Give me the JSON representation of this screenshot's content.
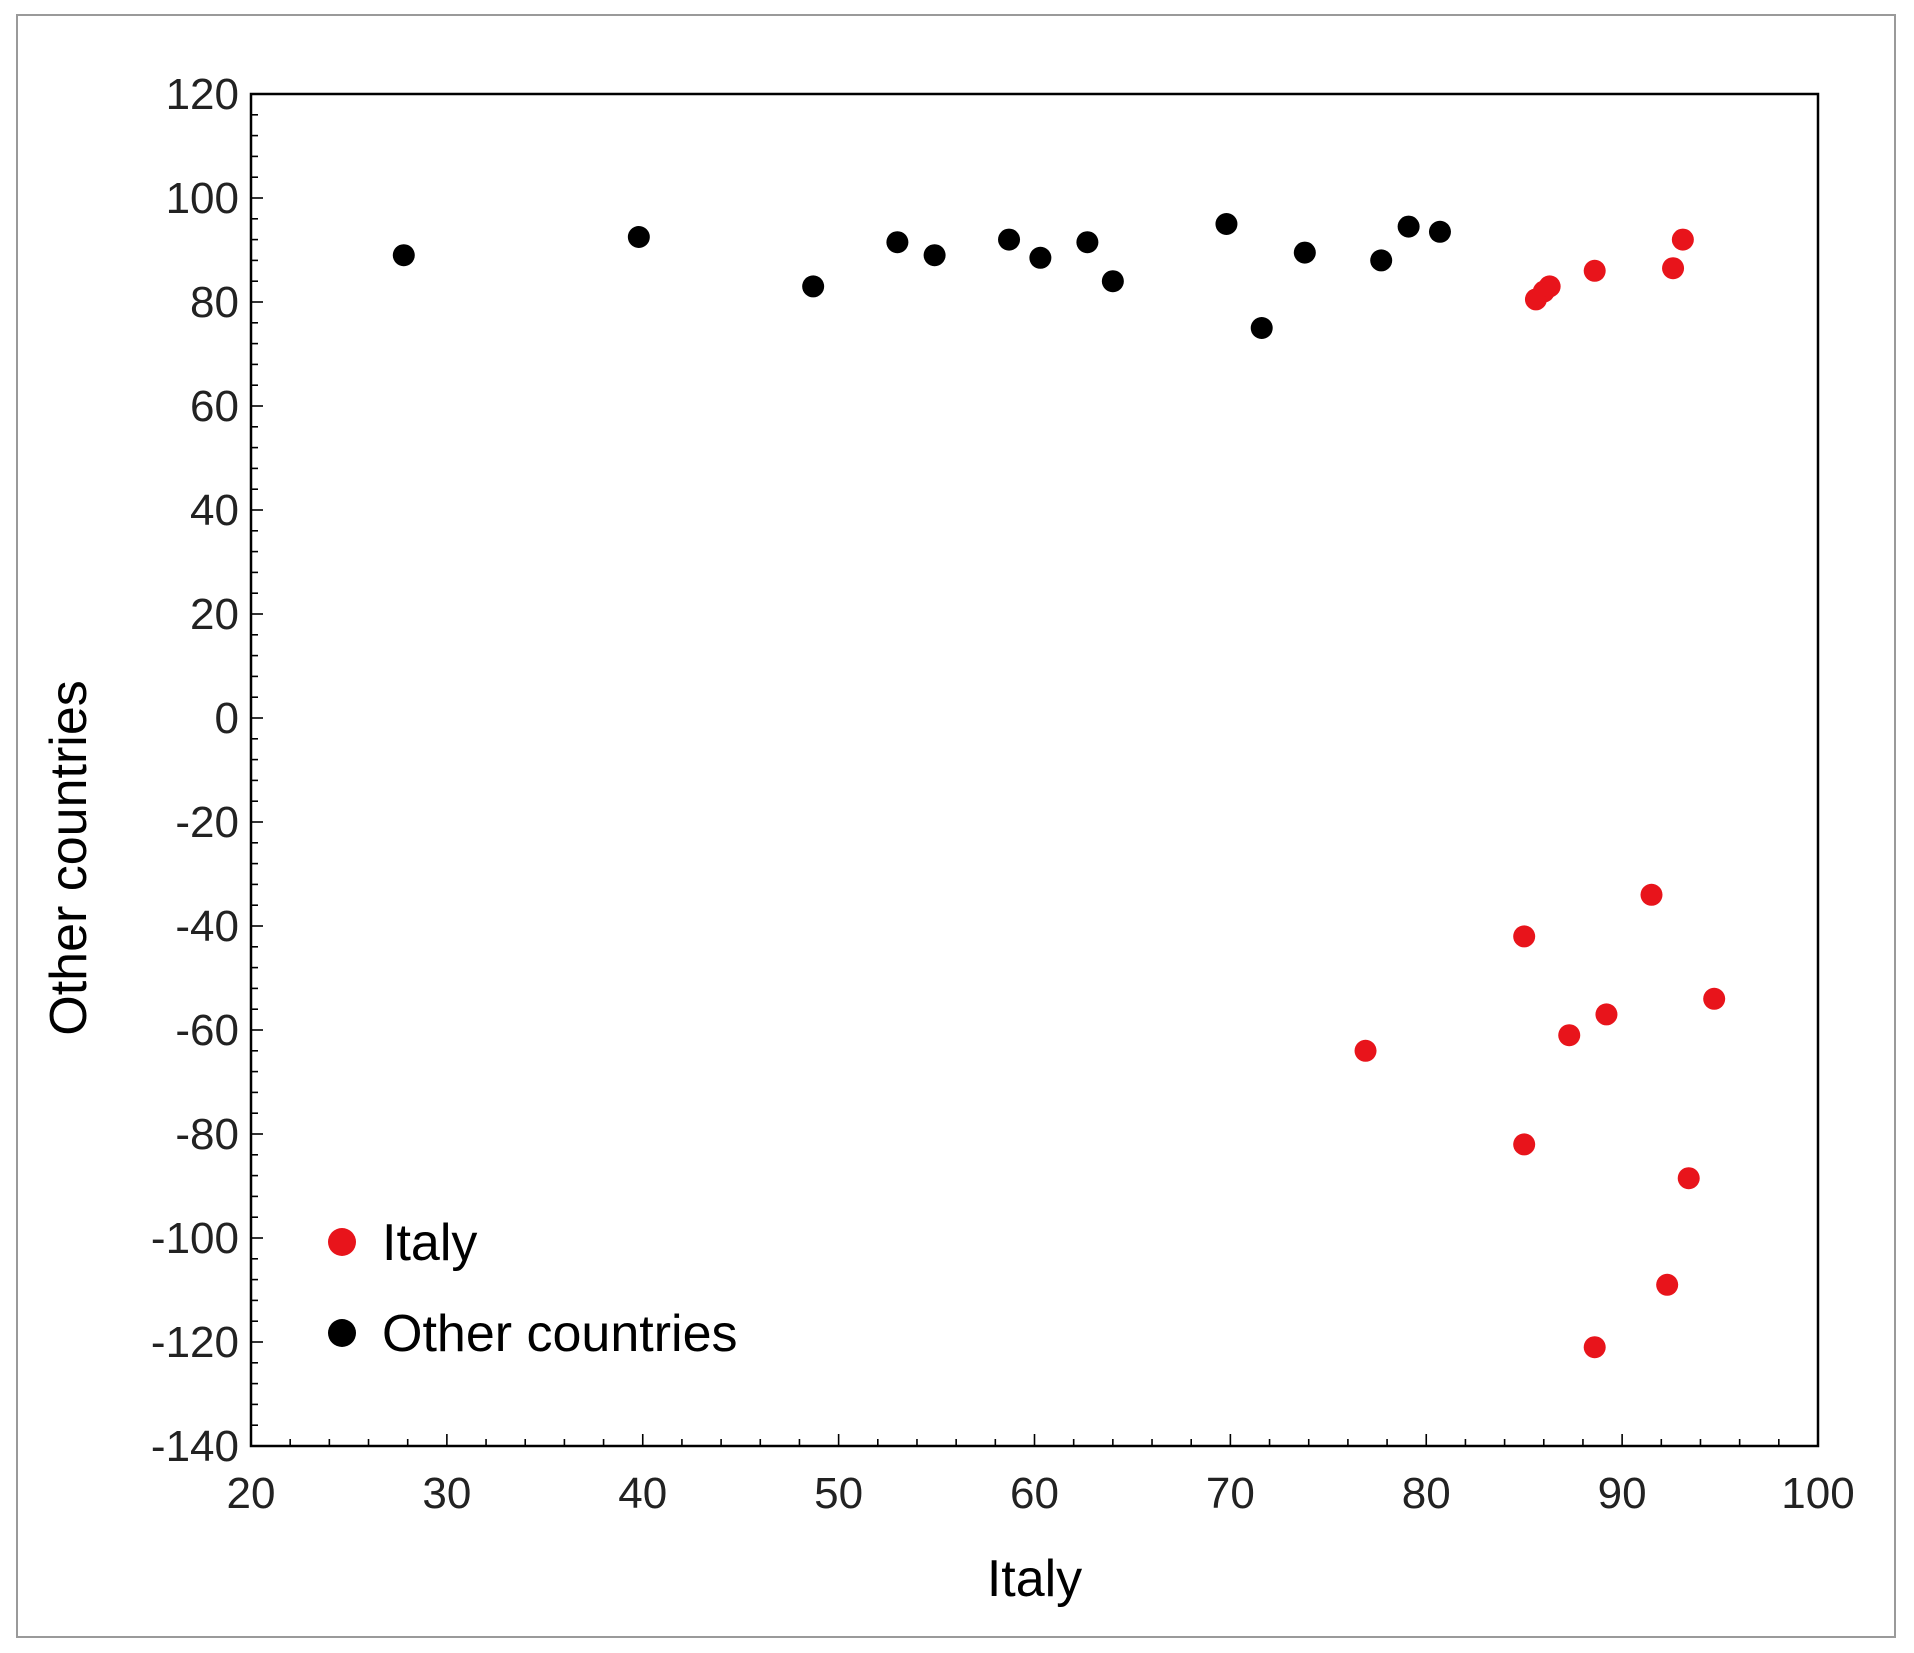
{
  "chart_data": {
    "type": "scatter",
    "title": "",
    "xlabel": "Italy",
    "ylabel": "Other countries",
    "xlim": [
      20,
      100
    ],
    "ylim": [
      -140,
      120
    ],
    "xticks": [
      20,
      30,
      40,
      50,
      60,
      70,
      80,
      90,
      100
    ],
    "yticks": [
      -140,
      -120,
      -100,
      -80,
      -60,
      -40,
      -20,
      0,
      20,
      40,
      60,
      80,
      100,
      120
    ],
    "grid": false,
    "legend_position": "bottom-left",
    "series": [
      {
        "name": "Italy",
        "color": "#e8141b",
        "points": [
          {
            "x": 85.6,
            "y": 80.5
          },
          {
            "x": 86.0,
            "y": 82.0
          },
          {
            "x": 86.3,
            "y": 83.0
          },
          {
            "x": 88.6,
            "y": 86.0
          },
          {
            "x": 92.6,
            "y": 86.5
          },
          {
            "x": 93.1,
            "y": 92.0
          },
          {
            "x": 91.5,
            "y": -34.0
          },
          {
            "x": 85.0,
            "y": -42.0
          },
          {
            "x": 94.7,
            "y": -54.0
          },
          {
            "x": 89.2,
            "y": -57.0
          },
          {
            "x": 87.3,
            "y": -61.0
          },
          {
            "x": 76.9,
            "y": -64.0
          },
          {
            "x": 85.0,
            "y": -82.0
          },
          {
            "x": 93.4,
            "y": -88.5
          },
          {
            "x": 92.3,
            "y": -109.0
          },
          {
            "x": 88.6,
            "y": -121.0
          }
        ]
      },
      {
        "name": "Other countries",
        "color": "#000000",
        "points": [
          {
            "x": 27.8,
            "y": 89.0
          },
          {
            "x": 39.8,
            "y": 92.5
          },
          {
            "x": 48.7,
            "y": 83.0
          },
          {
            "x": 53.0,
            "y": 91.5
          },
          {
            "x": 54.9,
            "y": 89.0
          },
          {
            "x": 58.7,
            "y": 92.0
          },
          {
            "x": 60.3,
            "y": 88.5
          },
          {
            "x": 62.7,
            "y": 91.5
          },
          {
            "x": 64.0,
            "y": 84.0
          },
          {
            "x": 69.8,
            "y": 95.0
          },
          {
            "x": 71.6,
            "y": 75.0
          },
          {
            "x": 73.8,
            "y": 89.5
          },
          {
            "x": 77.7,
            "y": 88.0
          },
          {
            "x": 79.1,
            "y": 94.5
          },
          {
            "x": 80.7,
            "y": 93.5
          }
        ]
      }
    ]
  }
}
